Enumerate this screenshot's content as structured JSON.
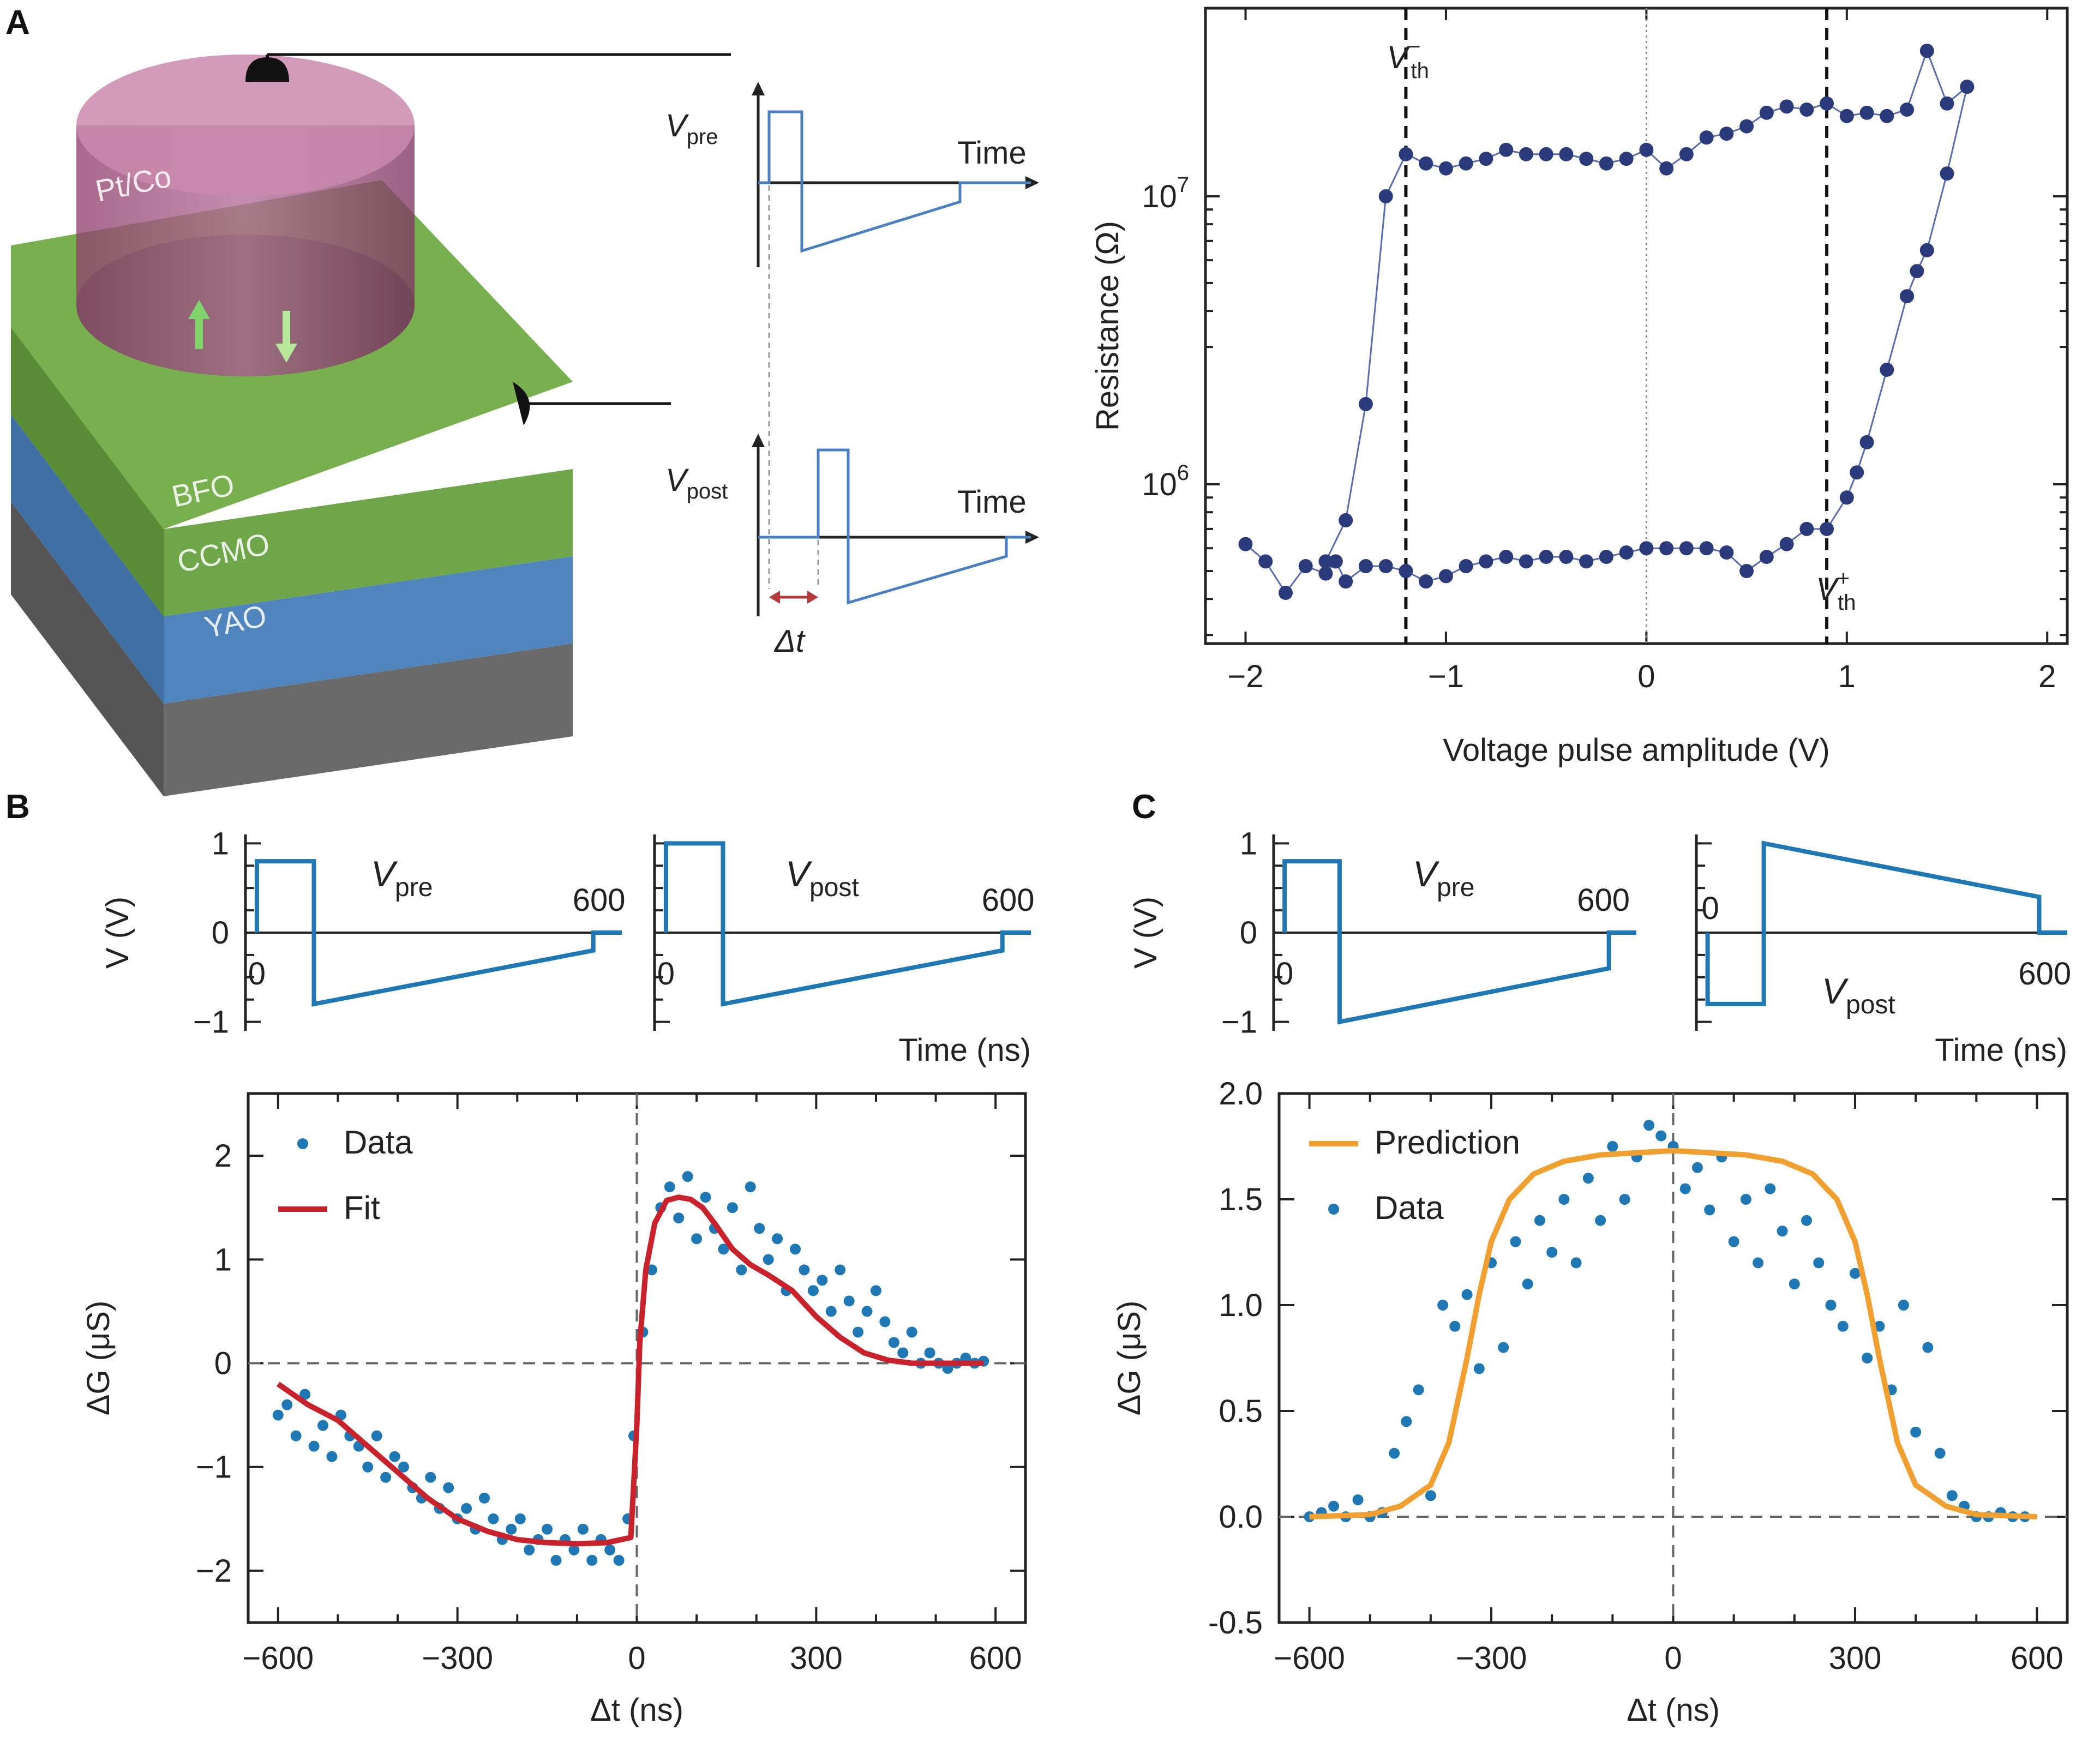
{
  "panel_labels": {
    "a": "A",
    "b": "B",
    "c": "C"
  },
  "device": {
    "layers": [
      "Pt/Co",
      "BFO",
      "CCMO",
      "YAO"
    ],
    "colors": {
      "electrode": "#a35d86",
      "bfo": "#6fa64a",
      "ccmo": "#5b8ec4",
      "yao": "#7a7a7a"
    }
  },
  "schematic": {
    "vpre_label": "V",
    "vpre_sub": "pre",
    "vpost_label": "V",
    "vpost_sub": "post",
    "time_label": "Time",
    "dt_label": "Δt",
    "colors": {
      "wave": "#4a7fc4",
      "dt": "#b33a3a"
    }
  },
  "colors": {
    "marker": "#2b3a7a",
    "blue": "#1f77b4",
    "fit": "#c8232c",
    "prediction": "#f0a030"
  },
  "chart_data": [
    {
      "id": "hysteresis",
      "type": "scatter",
      "title": "",
      "xlabel": "Voltage pulse amplitude (V)",
      "ylabel": "Resistance (Ω)",
      "ylog": true,
      "xlim": [
        -2.2,
        2.1
      ],
      "ylim": [
        280000,
        45000000
      ],
      "xticks": [
        -2,
        -1,
        0,
        1,
        2
      ],
      "xtick_labels": [
        "−2",
        "−1",
        "0",
        "1",
        "2"
      ],
      "ytick_labels": [
        {
          "base": "10",
          "exp": "7",
          "value": 10000000
        },
        {
          "base": "10",
          "exp": "6",
          "value": 1000000
        }
      ],
      "threshold_labels": {
        "neg": "V",
        "neg_sup": "−",
        "neg_sub": "th",
        "pos": "V",
        "pos_sup": "+",
        "pos_sub": "th"
      },
      "v_th_neg": -1.2,
      "v_th_pos": 0.9,
      "low_branch": {
        "x": [
          -2.0,
          -1.9,
          -1.8,
          -1.7,
          -1.6,
          -1.55,
          -1.5,
          -1.4,
          -1.3,
          -1.2,
          -1.1,
          -1.0,
          -0.9,
          -0.8,
          -0.7,
          -0.6,
          -0.5,
          -0.4,
          -0.3,
          -0.2,
          -0.1,
          0.0,
          0.1,
          0.2,
          0.3,
          0.4,
          0.5,
          0.6,
          0.7,
          0.8,
          0.9,
          1.0,
          1.05,
          1.1,
          1.2,
          1.3,
          1.35,
          1.4,
          1.5,
          1.6
        ],
        "y": [
          620000,
          540000,
          420000,
          520000,
          490000,
          540000,
          460000,
          520000,
          520000,
          500000,
          460000,
          480000,
          520000,
          540000,
          560000,
          540000,
          560000,
          560000,
          540000,
          560000,
          580000,
          600000,
          600000,
          600000,
          600000,
          580000,
          500000,
          560000,
          620000,
          700000,
          700000,
          900000,
          1100000,
          1400000,
          2500000,
          4500000,
          5500000,
          6500000,
          12000000,
          24000000
        ]
      },
      "high_branch": {
        "x": [
          -1.6,
          -1.5,
          -1.4,
          -1.3,
          -1.2,
          -1.1,
          -1.0,
          -0.9,
          -0.8,
          -0.7,
          -0.6,
          -0.5,
          -0.4,
          -0.3,
          -0.2,
          -0.1,
          0.0,
          0.1,
          0.2,
          0.3,
          0.4,
          0.5,
          0.6,
          0.7,
          0.8,
          0.9,
          1.0,
          1.1,
          1.2,
          1.3,
          1.4,
          1.5,
          1.6
        ],
        "y": [
          540000,
          750000,
          1900000,
          10000000,
          14000000,
          13000000,
          12500000,
          13000000,
          13500000,
          14500000,
          14000000,
          14000000,
          14000000,
          13500000,
          13000000,
          13500000,
          14500000,
          12500000,
          14000000,
          16000000,
          16500000,
          17500000,
          19500000,
          20500000,
          20000000,
          21000000,
          19000000,
          19500000,
          19000000,
          20000000,
          32000000,
          21000000,
          24000000
        ]
      }
    },
    {
      "id": "b-pre",
      "type": "line",
      "label": "V",
      "label_sub": "pre",
      "ylabel": "V (V)",
      "xlabel": "",
      "xlim": [
        -20,
        640
      ],
      "ylim": [
        -1.1,
        1.1
      ],
      "yticks": [
        1,
        0,
        -1
      ],
      "ytick_labels": [
        "1",
        "0",
        "−1"
      ],
      "xlabels": {
        "start": "0",
        "end": "600"
      },
      "x": [
        0,
        0,
        100,
        100,
        100,
        590,
        590,
        640
      ],
      "y": [
        0,
        0.8,
        0.8,
        0,
        -0.8,
        -0.2,
        0,
        0
      ]
    },
    {
      "id": "b-post",
      "type": "line",
      "label": "V",
      "label_sub": "post",
      "xlabel": "Time (ns)",
      "xlim": [
        -20,
        640
      ],
      "ylim": [
        -1.1,
        1.1
      ],
      "xlabels": {
        "start": "0",
        "end": "600"
      },
      "x": [
        0,
        0,
        100,
        100,
        100,
        590,
        590,
        640
      ],
      "y": [
        0,
        1.0,
        1.0,
        0,
        -0.8,
        -0.2,
        0,
        0
      ]
    },
    {
      "id": "b-dg",
      "type": "scatter",
      "xlabel": "Δt (ns)",
      "ylabel": "ΔG (μS)",
      "xlim": [
        -650,
        650
      ],
      "ylim": [
        -2.5,
        2.6
      ],
      "xticks": [
        -600,
        -300,
        0,
        300,
        600
      ],
      "xtick_labels": [
        "−600",
        "−300",
        "0",
        "300",
        "600"
      ],
      "yticks": [
        2,
        1,
        0,
        -1,
        -2
      ],
      "ytick_labels": [
        "2",
        "1",
        "0",
        "−1",
        "−2"
      ],
      "legend": [
        {
          "label": "Data",
          "kind": "marker"
        },
        {
          "label": "Fit",
          "kind": "line"
        }
      ],
      "data_x": [
        -600,
        -585,
        -570,
        -555,
        -540,
        -525,
        -510,
        -495,
        -480,
        -465,
        -450,
        -435,
        -420,
        -405,
        -390,
        -375,
        -360,
        -345,
        -330,
        -315,
        -300,
        -285,
        -270,
        -255,
        -240,
        -225,
        -210,
        -195,
        -180,
        -165,
        -150,
        -135,
        -120,
        -105,
        -90,
        -75,
        -60,
        -45,
        -30,
        -15,
        -5,
        10,
        25,
        40,
        55,
        70,
        85,
        100,
        115,
        130,
        145,
        160,
        175,
        190,
        205,
        220,
        235,
        250,
        265,
        280,
        295,
        310,
        325,
        340,
        355,
        370,
        385,
        400,
        415,
        430,
        445,
        460,
        475,
        490,
        505,
        520,
        535,
        550,
        565,
        580
      ],
      "data_y": [
        -0.5,
        -0.4,
        -0.7,
        -0.3,
        -0.8,
        -0.6,
        -0.9,
        -0.5,
        -0.7,
        -0.8,
        -1.0,
        -0.7,
        -1.1,
        -0.9,
        -1.0,
        -1.2,
        -1.3,
        -1.1,
        -1.4,
        -1.2,
        -1.5,
        -1.4,
        -1.6,
        -1.3,
        -1.5,
        -1.7,
        -1.6,
        -1.5,
        -1.8,
        -1.7,
        -1.6,
        -1.9,
        -1.7,
        -1.8,
        -1.6,
        -1.9,
        -1.7,
        -1.8,
        -1.9,
        -1.5,
        -0.7,
        0.3,
        0.9,
        1.5,
        1.7,
        1.4,
        1.8,
        1.2,
        1.6,
        1.3,
        1.1,
        1.5,
        0.9,
        1.7,
        1.3,
        1.0,
        1.2,
        0.7,
        1.1,
        0.9,
        0.7,
        0.8,
        0.5,
        0.9,
        0.6,
        0.3,
        0.5,
        0.7,
        0.4,
        0.2,
        0.1,
        0.3,
        0.0,
        0.1,
        0.0,
        -0.05,
        0.0,
        0.05,
        0.0,
        0.02
      ],
      "fit_x": [
        -600,
        -550,
        -500,
        -450,
        -400,
        -350,
        -300,
        -250,
        -200,
        -150,
        -100,
        -50,
        -10,
        0,
        5,
        15,
        30,
        50,
        70,
        90,
        110,
        130,
        160,
        190,
        220,
        260,
        300,
        340,
        380,
        420,
        460,
        500,
        540,
        580
      ],
      "fit_y": [
        -0.2,
        -0.4,
        -0.55,
        -0.8,
        -1.05,
        -1.3,
        -1.5,
        -1.62,
        -1.7,
        -1.73,
        -1.74,
        -1.73,
        -1.68,
        -0.6,
        0.2,
        0.9,
        1.35,
        1.57,
        1.6,
        1.58,
        1.5,
        1.35,
        1.1,
        0.95,
        0.85,
        0.7,
        0.45,
        0.25,
        0.1,
        0.03,
        0.0,
        0.0,
        0.0,
        0.0
      ]
    },
    {
      "id": "c-pre",
      "type": "line",
      "label": "V",
      "label_sub": "pre",
      "ylabel": "V (V)",
      "xlabel": "",
      "xlim": [
        -20,
        640
      ],
      "ylim": [
        -1.1,
        1.1
      ],
      "yticks": [
        1,
        0,
        -1
      ],
      "ytick_labels": [
        "1",
        "0",
        "−1"
      ],
      "xlabels": {
        "start": "0",
        "end": "600"
      },
      "x": [
        0,
        0,
        100,
        100,
        100,
        590,
        590,
        640
      ],
      "y": [
        0,
        0.8,
        0.8,
        0,
        -1.0,
        -0.4,
        0,
        0
      ]
    },
    {
      "id": "c-post",
      "type": "line",
      "label": "V",
      "label_sub": "post",
      "xlabel": "Time (ns)",
      "xlim": [
        -20,
        640
      ],
      "ylim": [
        -1.1,
        1.1
      ],
      "xlabels": {
        "start": "0",
        "end": "600"
      },
      "x": [
        0,
        0,
        100,
        100,
        100,
        590,
        590,
        640
      ],
      "y": [
        0,
        -0.8,
        -0.8,
        0,
        1.0,
        0.4,
        0,
        0
      ]
    },
    {
      "id": "c-dg",
      "type": "scatter",
      "xlabel": "Δt (ns)",
      "ylabel": "ΔG (μS)",
      "xlim": [
        -650,
        650
      ],
      "ylim": [
        -0.5,
        2.0
      ],
      "xticks": [
        -600,
        -300,
        0,
        300,
        600
      ],
      "xtick_labels": [
        "−600",
        "−300",
        "0",
        "300",
        "600"
      ],
      "yticks": [
        2.0,
        1.5,
        1.0,
        0.5,
        0.0,
        -0.5
      ],
      "ytick_labels": [
        "2.0",
        "1.5",
        "1.0",
        "0.5",
        "0.0",
        "-0.5"
      ],
      "legend": [
        {
          "label": "Prediction",
          "kind": "line"
        },
        {
          "label": "Data",
          "kind": "marker"
        }
      ],
      "data_x": [
        -600,
        -580,
        -560,
        -540,
        -520,
        -500,
        -480,
        -460,
        -440,
        -420,
        -400,
        -380,
        -360,
        -340,
        -320,
        -300,
        -280,
        -260,
        -240,
        -220,
        -200,
        -180,
        -160,
        -140,
        -120,
        -100,
        -80,
        -60,
        -40,
        -20,
        0,
        20,
        40,
        60,
        80,
        100,
        120,
        140,
        160,
        180,
        200,
        220,
        240,
        260,
        280,
        300,
        320,
        340,
        360,
        380,
        400,
        420,
        440,
        460,
        480,
        500,
        520,
        540,
        560,
        580
      ],
      "data_y": [
        0.0,
        0.02,
        0.05,
        0.0,
        0.08,
        0.0,
        0.02,
        0.3,
        0.45,
        0.6,
        0.1,
        1.0,
        0.9,
        1.05,
        0.7,
        1.2,
        0.8,
        1.3,
        1.1,
        1.4,
        1.25,
        1.5,
        1.2,
        1.6,
        1.4,
        1.75,
        1.5,
        1.7,
        1.85,
        1.8,
        1.75,
        1.55,
        1.65,
        1.45,
        1.7,
        1.3,
        1.5,
        1.2,
        1.55,
        1.35,
        1.1,
        1.4,
        1.2,
        1.0,
        0.9,
        1.15,
        0.75,
        0.9,
        0.6,
        1.0,
        0.4,
        0.8,
        0.3,
        0.1,
        0.05,
        0.0,
        0.0,
        0.02,
        0.0,
        0.0
      ],
      "fit_x": [
        -600,
        -500,
        -450,
        -400,
        -370,
        -340,
        -320,
        -300,
        -270,
        -230,
        -180,
        -120,
        -60,
        0,
        60,
        120,
        180,
        230,
        270,
        300,
        320,
        340,
        370,
        400,
        450,
        500,
        600
      ],
      "fit_y": [
        0.0,
        0.01,
        0.05,
        0.15,
        0.35,
        0.75,
        1.05,
        1.3,
        1.5,
        1.62,
        1.68,
        1.71,
        1.72,
        1.73,
        1.72,
        1.71,
        1.68,
        1.62,
        1.5,
        1.3,
        1.05,
        0.75,
        0.35,
        0.15,
        0.05,
        0.01,
        0.0
      ]
    }
  ]
}
